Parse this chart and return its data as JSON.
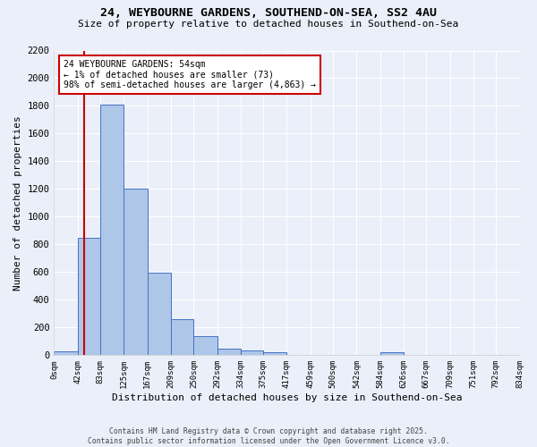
{
  "title_line1": "24, WEYBOURNE GARDENS, SOUTHEND-ON-SEA, SS2 4AU",
  "title_line2": "Size of property relative to detached houses in Southend-on-Sea",
  "xlabel": "Distribution of detached houses by size in Southend-on-Sea",
  "ylabel": "Number of detached properties",
  "bar_edges": [
    0,
    42,
    83,
    125,
    167,
    209,
    250,
    292,
    334,
    375,
    417,
    459,
    500,
    542,
    584,
    626,
    667,
    709,
    751,
    792,
    834
  ],
  "bar_heights": [
    25,
    845,
    1810,
    1205,
    595,
    260,
    135,
    50,
    35,
    20,
    0,
    0,
    0,
    0,
    20,
    0,
    0,
    0,
    0,
    0
  ],
  "bar_color": "#aec6e8",
  "bar_edge_color": "#4472c4",
  "vline_x": 54,
  "vline_color": "#cc0000",
  "annotation_text": "24 WEYBOURNE GARDENS: 54sqm\n← 1% of detached houses are smaller (73)\n98% of semi-detached houses are larger (4,863) →",
  "annotation_box_color": "#ffffff",
  "annotation_box_edge_color": "#cc0000",
  "ylim": [
    0,
    2200
  ],
  "yticks": [
    0,
    200,
    400,
    600,
    800,
    1000,
    1200,
    1400,
    1600,
    1800,
    2000,
    2200
  ],
  "tick_labels": [
    "0sqm",
    "42sqm",
    "83sqm",
    "125sqm",
    "167sqm",
    "209sqm",
    "250sqm",
    "292sqm",
    "334sqm",
    "375sqm",
    "417sqm",
    "459sqm",
    "500sqm",
    "542sqm",
    "584sqm",
    "626sqm",
    "667sqm",
    "709sqm",
    "751sqm",
    "792sqm",
    "834sqm"
  ],
  "footer_line1": "Contains HM Land Registry data © Crown copyright and database right 2025.",
  "footer_line2": "Contains public sector information licensed under the Open Government Licence v3.0.",
  "bg_color": "#eaeff9",
  "plot_bg_color": "#eaeff9"
}
